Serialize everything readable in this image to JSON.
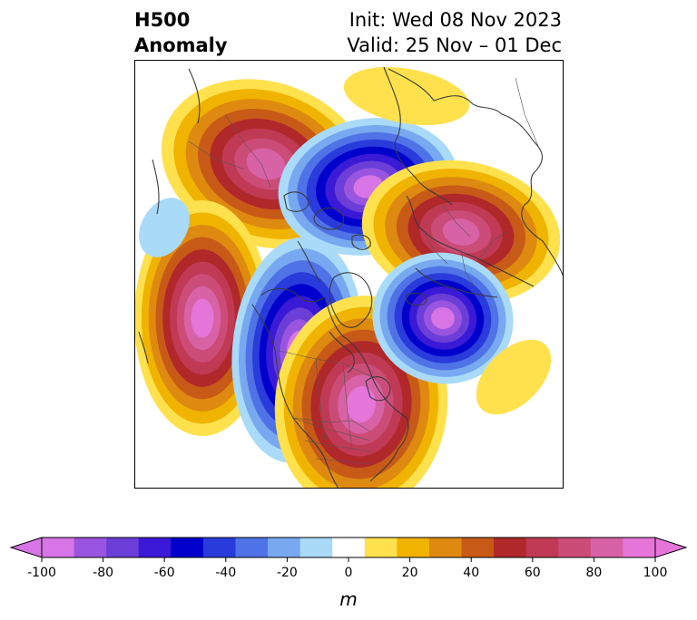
{
  "title": {
    "left_line1": "H500",
    "left_line2": "Anomaly",
    "right_line1": "Init: Wed 08 Nov 2023",
    "right_line2": "Valid: 25 Nov – 01 Dec"
  },
  "colorbar": {
    "unit_label": "m",
    "tick_labels": [
      "-100",
      "-80",
      "-60",
      "-40",
      "-20",
      "0",
      "20",
      "40",
      "60",
      "80",
      "100"
    ],
    "levels": [
      -100,
      -90,
      -80,
      -70,
      -60,
      -50,
      -40,
      -30,
      -20,
      -10,
      10,
      20,
      30,
      40,
      50,
      60,
      70,
      80,
      90,
      100
    ],
    "colors": [
      "#d774e6",
      "#9a55e0",
      "#6b3ed8",
      "#3a1ad6",
      "#0000cd",
      "#2a3bdb",
      "#4f73e6",
      "#78a8ef",
      "#a9daf8",
      "#ffffff",
      "#ffe14d",
      "#f0b400",
      "#de8a10",
      "#c85a18",
      "#b0282a",
      "#c03a55",
      "#cc4c78",
      "#d862a6",
      "#e575d8"
    ],
    "extend": "both"
  },
  "map": {
    "description_region": "Northern Hemisphere polar stereographic (North America / Arctic)",
    "anomaly_centers": [
      {
        "sign": "positive",
        "peak": 80,
        "region": "Siberia / Far East"
      },
      {
        "sign": "negative",
        "peak": -90,
        "region": "Arctic Ocean / Kara Sea"
      },
      {
        "sign": "positive",
        "peak": 70,
        "region": "Northern Europe / Scandinavia"
      },
      {
        "sign": "positive",
        "peak": 100,
        "region": "North Pacific"
      },
      {
        "sign": "negative",
        "peak": -90,
        "region": "Western North America / Alaska coast"
      },
      {
        "sign": "positive",
        "peak": 80,
        "region": "Eastern Canada / Hudson Bay"
      },
      {
        "sign": "negative",
        "peak": -100,
        "region": "North Atlantic / Iceland"
      },
      {
        "sign": "positive",
        "peak": 20,
        "region": "Central Atlantic"
      }
    ]
  }
}
